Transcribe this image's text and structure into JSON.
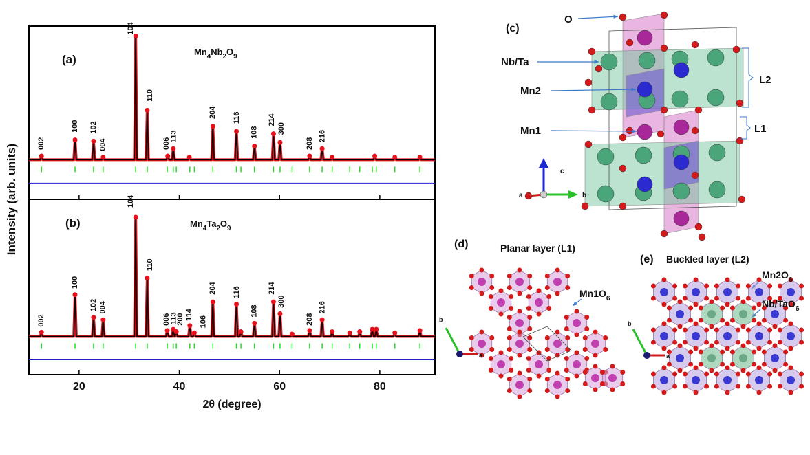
{
  "chart_data": [
    {
      "type": "line",
      "panel": "(a)",
      "title": "Mn4Nb2O9",
      "x": [
        10,
        12.25,
        12.5,
        12.75,
        18.95,
        19.2,
        19.45,
        22.65,
        22.9,
        23.15,
        24.55,
        24.8,
        25.05,
        31.05,
        31.3,
        31.55,
        33.35,
        33.6,
        33.85,
        37.45,
        37.7,
        37.95,
        38.55,
        38.8,
        39.05,
        41.75,
        42,
        42.25,
        46.45,
        46.7,
        46.95,
        51.15,
        51.4,
        51.65,
        54.75,
        55,
        55.25,
        58.55,
        58.8,
        59.05,
        59.85,
        60.1,
        60.35,
        65.75,
        66,
        66.25,
        68.25,
        68.5,
        68.75,
        70.25,
        70.5,
        70.75,
        78.75,
        79,
        79.25,
        82.75,
        83,
        83.25,
        87.75,
        88,
        88.25,
        91
      ],
      "values": [
        0,
        0,
        3,
        0,
        0,
        16,
        0,
        0,
        15,
        0,
        0,
        2,
        0,
        0,
        100,
        0,
        0,
        40,
        0,
        0,
        3,
        0,
        0,
        9,
        0,
        0,
        2,
        0,
        0,
        27,
        0,
        0,
        23,
        0,
        0,
        11,
        0,
        0,
        21,
        0,
        0,
        14,
        0,
        0,
        3,
        0,
        0,
        9,
        0,
        0,
        2,
        0,
        0,
        3,
        0,
        0,
        2,
        0,
        0,
        2,
        0,
        0
      ],
      "reflections": [
        12.5,
        19.2,
        22.9,
        24.8,
        31.3,
        33.6,
        37.6,
        38.8,
        39.4,
        42.1,
        43,
        46.7,
        51.4,
        52.3,
        55,
        58.8,
        60.1,
        62.5,
        66,
        68.5,
        70.5,
        74,
        76,
        78.5,
        79.3,
        83,
        88
      ],
      "annotations": [
        {
          "text": "002",
          "x": 12.5,
          "y": 8
        },
        {
          "text": "100",
          "x": 19.2,
          "y": 22
        },
        {
          "text": "102",
          "x": 22.9,
          "y": 21
        },
        {
          "text": "004",
          "x": 24.8,
          "y": 7
        },
        {
          "text": "104",
          "x": 30.3,
          "y": 101
        },
        {
          "text": "110",
          "x": 34.2,
          "y": 47
        },
        {
          "text": "006",
          "x": 37.5,
          "y": 8
        },
        {
          "text": "113",
          "x": 38.9,
          "y": 14
        },
        {
          "text": "204",
          "x": 46.7,
          "y": 33
        },
        {
          "text": "116",
          "x": 51.5,
          "y": 29
        },
        {
          "text": "108",
          "x": 55,
          "y": 17
        },
        {
          "text": "214",
          "x": 58.5,
          "y": 27
        },
        {
          "text": "300",
          "x": 60.4,
          "y": 20
        },
        {
          "text": "208",
          "x": 66,
          "y": 8
        },
        {
          "text": "216",
          "x": 68.6,
          "y": 14
        }
      ],
      "xlim": [
        10,
        91
      ],
      "ylim": [
        -32,
        108
      ],
      "color": "#000000",
      "marker_color": "#e8101a",
      "reflection_color": "#22dd22"
    },
    {
      "type": "line",
      "panel": "(b)",
      "title": "Mn4Ta2O9",
      "x": [
        10,
        12.25,
        12.5,
        12.75,
        18.95,
        19.2,
        19.45,
        22.65,
        22.9,
        23.15,
        24.55,
        24.8,
        25.05,
        31.05,
        31.3,
        31.55,
        33.35,
        33.6,
        33.85,
        37.35,
        37.6,
        37.85,
        38.55,
        38.8,
        39.05,
        39.15,
        39.4,
        39.65,
        41.85,
        42.1,
        42.35,
        42.75,
        43,
        43.25,
        46.45,
        46.7,
        46.95,
        51.15,
        51.4,
        51.65,
        52.05,
        52.3,
        52.55,
        54.75,
        55,
        55.25,
        58.55,
        58.8,
        59.05,
        59.85,
        60.1,
        60.35,
        62.25,
        62.5,
        62.75,
        65.75,
        66,
        66.25,
        68.25,
        68.5,
        68.75,
        70.25,
        70.5,
        70.75,
        73.75,
        74,
        74.25,
        75.75,
        76,
        76.25,
        78.25,
        78.5,
        78.75,
        79.05,
        79.3,
        79.55,
        82.75,
        83,
        83.25,
        87.75,
        88,
        88.25,
        91
      ],
      "values": [
        0,
        0,
        3.5,
        0,
        0,
        35,
        0,
        0,
        16,
        0,
        0,
        14,
        0,
        0,
        100,
        0,
        0,
        49,
        0,
        0,
        5,
        0,
        0,
        6,
        0,
        0,
        4,
        0,
        0,
        9,
        0,
        0,
        3,
        0,
        0,
        29,
        0,
        0,
        27,
        0,
        0,
        4,
        0,
        0,
        11,
        0,
        0,
        29,
        0,
        0,
        19,
        0,
        0,
        2,
        0,
        0,
        5,
        0,
        0,
        14,
        0,
        0,
        4,
        0,
        0,
        3,
        0,
        0,
        4,
        0,
        0,
        6,
        0,
        0,
        6,
        0,
        0,
        3,
        0,
        0,
        5,
        0,
        0
      ],
      "reflections": [
        12.5,
        19.2,
        22.9,
        24.8,
        31.3,
        33.6,
        37.6,
        38.8,
        39.4,
        42.1,
        43,
        46.7,
        51.4,
        52.3,
        55,
        58.8,
        60.1,
        62.5,
        66,
        68.5,
        70.5,
        74,
        76,
        78.5,
        79.3,
        83,
        88
      ],
      "annotations": [
        {
          "text": "002",
          "x": 12.5,
          "y": 8
        },
        {
          "text": "100",
          "x": 19.2,
          "y": 40
        },
        {
          "text": "102",
          "x": 22.9,
          "y": 21
        },
        {
          "text": "004",
          "x": 24.8,
          "y": 19
        },
        {
          "text": "104",
          "x": 30.3,
          "y": 108
        },
        {
          "text": "110",
          "x": 34.2,
          "y": 55
        },
        {
          "text": "006",
          "x": 37.5,
          "y": 9
        },
        {
          "text": "113",
          "x": 38.9,
          "y": 10
        },
        {
          "text": "200",
          "x": 40.2,
          "y": 9
        },
        {
          "text": "114",
          "x": 42,
          "y": 13
        },
        {
          "text": "106",
          "x": 44.8,
          "y": 7
        },
        {
          "text": "204",
          "x": 46.7,
          "y": 35
        },
        {
          "text": "116",
          "x": 51.5,
          "y": 32
        },
        {
          "text": "108",
          "x": 55,
          "y": 16
        },
        {
          "text": "214",
          "x": 58.5,
          "y": 35
        },
        {
          "text": "300",
          "x": 60.4,
          "y": 24
        },
        {
          "text": "208",
          "x": 66,
          "y": 9
        },
        {
          "text": "216",
          "x": 68.6,
          "y": 19
        }
      ],
      "xlim": [
        10,
        91
      ],
      "ylim": [
        -32,
        115
      ],
      "xticks": [
        20,
        40,
        60,
        80
      ],
      "color": "#000000",
      "marker_color": "#e8101a",
      "reflection_color": "#22dd22"
    }
  ],
  "x_label": "2θ (degree)",
  "y_label": "Intensity (arb. units)",
  "structure": {
    "panel": "(c)",
    "labels": [
      "O",
      "Nb/Ta",
      "Mn2",
      "Mn1"
    ],
    "layers": [
      "L2",
      "L1"
    ],
    "axes": [
      "c",
      "a",
      "b"
    ]
  },
  "planar": {
    "panel": "(d)",
    "title": "Planar layer (L1)",
    "label": "Mn1O6",
    "axes": [
      "b",
      "a"
    ]
  },
  "buckled": {
    "panel": "(e)",
    "title": "Buckled layer (L2)",
    "labels": [
      "Mn2O6",
      "Nb/TaO6"
    ],
    "axes": [
      "b",
      "a"
    ]
  }
}
